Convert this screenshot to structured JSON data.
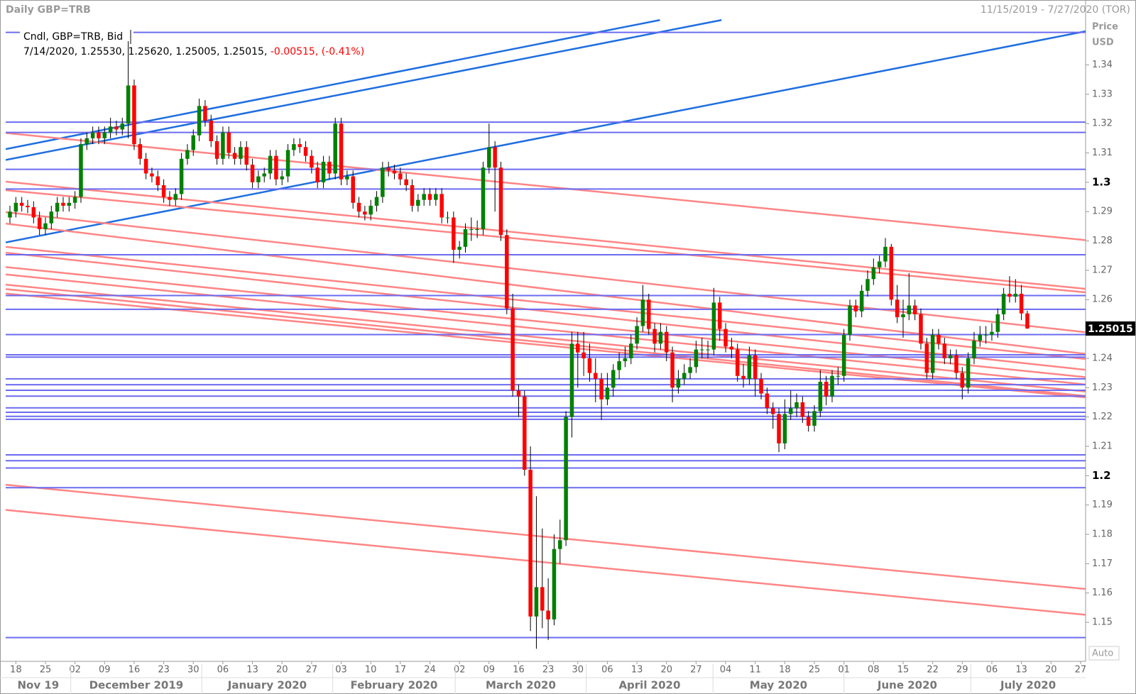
{
  "chart_data": {
    "type": "candlestick",
    "title": "Daily GBP=TRB",
    "date_range": "11/15/2019 - 7/27/2020 (TOR)",
    "series_label": "Cndl, GBP=TRB, Bid",
    "ohlc_label": "7/14/2020, 1.25530, 1.25620, 1.25005, 1.25015,",
    "change_label": "-0.00515,",
    "change_pct_label": "(-0.41%)",
    "y_axis_label": "Price",
    "y_axis_unit": "USD",
    "scale_mode": "Auto",
    "up_color": "#008000",
    "down_color": "#ff0000",
    "last_price": {
      "value": 1.25015,
      "label": "1.25015"
    },
    "ylim": [
      1.1367,
      1.3556
    ],
    "xlim": [
      -0.72,
      181.85
    ],
    "yticks": [
      1.15,
      1.16,
      1.17,
      1.18,
      1.19,
      1.2,
      1.21,
      1.22,
      1.23,
      1.24,
      1.25,
      1.26,
      1.27,
      1.28,
      1.29,
      1.3,
      1.31,
      1.32,
      1.33,
      1.34
    ],
    "x_tick_labels": [
      "18",
      "25",
      "02",
      "09",
      "16",
      "23",
      "30",
      "06",
      "13",
      "20",
      "27",
      "03",
      "10",
      "17",
      "24",
      "02",
      "09",
      "16",
      "23",
      "30",
      "06",
      "13",
      "20",
      "27",
      "04",
      "11",
      "18",
      "25",
      "01",
      "08",
      "15",
      "22",
      "29",
      "06",
      "13",
      "20",
      "27"
    ],
    "month_labels": [
      "Nov 19",
      "December 2019",
      "January 2020",
      "February 2020",
      "March 2020",
      "April 2020",
      "May 2020",
      "June 2020",
      "July 2020"
    ],
    "h_lines": {
      "color": "#6b6bf0",
      "values": [
        1.3511,
        1.3205,
        1.317,
        1.3044,
        1.2977,
        1.2753,
        1.2614,
        1.2567,
        1.2481,
        1.2412,
        1.2404,
        1.233,
        1.231,
        1.2291,
        1.2271,
        1.2231,
        1.2216,
        1.2202,
        1.2192,
        1.2071,
        1.2051,
        1.2026,
        1.1959,
        1.1448
      ]
    },
    "trend_lines": [
      {
        "color": "#1e6ee0",
        "lines": [
          [
            -0.72,
            1.3113,
            109.88,
            1.3553
          ],
          [
            -0.72,
            1.3076,
            120.3,
            1.3553
          ],
          [
            -0.72,
            1.2795,
            182.2,
            1.3516
          ]
        ]
      },
      {
        "color": "#ff8585",
        "lines": [
          [
            -0.72,
            1.3168,
            182.2,
            1.2802
          ],
          [
            -0.72,
            1.3002,
            182.2,
            1.2636
          ],
          [
            -0.72,
            1.2973,
            182.2,
            1.2624
          ],
          [
            -0.72,
            1.2898,
            182.2,
            1.2488
          ],
          [
            -0.72,
            1.2859,
            182.2,
            1.2414
          ],
          [
            -0.72,
            1.278,
            182.2,
            1.2397
          ],
          [
            -0.72,
            1.276,
            182.2,
            1.236
          ],
          [
            -0.72,
            1.2711,
            182.2,
            1.2335
          ],
          [
            -0.72,
            1.2686,
            182.2,
            1.231
          ],
          [
            -0.72,
            1.2651,
            182.2,
            1.2286
          ],
          [
            -0.72,
            1.2636,
            182.2,
            1.2271
          ],
          [
            -0.72,
            1.2621,
            182.2,
            1.2266
          ],
          [
            -0.72,
            1.1969,
            182.2,
            1.1613
          ],
          [
            -0.72,
            1.1883,
            182.2,
            1.1525
          ]
        ]
      }
    ],
    "candles": [
      [
        1.288,
        1.292,
        1.286,
        1.29
      ],
      [
        1.29,
        1.295,
        1.288,
        1.293
      ],
      [
        1.293,
        1.295,
        1.29,
        1.292
      ],
      [
        1.292,
        1.294,
        1.2895,
        1.2915
      ],
      [
        1.2915,
        1.2935,
        1.286,
        1.288
      ],
      [
        1.288,
        1.29,
        1.282,
        1.284
      ],
      [
        1.284,
        1.288,
        1.282,
        1.286
      ],
      [
        1.286,
        1.292,
        1.284,
        1.29
      ],
      [
        1.29,
        1.295,
        1.288,
        1.293
      ],
      [
        1.293,
        1.295,
        1.29,
        1.292
      ],
      [
        1.292,
        1.295,
        1.29,
        1.293
      ],
      [
        1.293,
        1.297,
        1.291,
        1.295
      ],
      [
        1.295,
        1.315,
        1.293,
        1.313
      ],
      [
        1.313,
        1.317,
        1.311,
        1.315
      ],
      [
        1.315,
        1.319,
        1.313,
        1.317
      ],
      [
        1.317,
        1.319,
        1.313,
        1.315
      ],
      [
        1.315,
        1.319,
        1.313,
        1.317
      ],
      [
        1.317,
        1.322,
        1.315,
        1.319
      ],
      [
        1.319,
        1.321,
        1.316,
        1.318
      ],
      [
        1.318,
        1.322,
        1.316,
        1.32
      ],
      [
        1.32,
        1.3514,
        1.315,
        1.333
      ],
      [
        1.333,
        1.335,
        1.311,
        1.313
      ],
      [
        1.313,
        1.315,
        1.306,
        1.308
      ],
      [
        1.308,
        1.31,
        1.301,
        1.303
      ],
      [
        1.303,
        1.305,
        1.3,
        1.302
      ],
      [
        1.302,
        1.304,
        1.297,
        1.299
      ],
      [
        1.299,
        1.301,
        1.293,
        1.295
      ],
      [
        1.295,
        1.297,
        1.292,
        1.294
      ],
      [
        1.294,
        1.298,
        1.292,
        1.296
      ],
      [
        1.296,
        1.31,
        1.294,
        1.308
      ],
      [
        1.308,
        1.313,
        1.306,
        1.311
      ],
      [
        1.311,
        1.318,
        1.309,
        1.316
      ],
      [
        1.316,
        1.3285,
        1.314,
        1.326
      ],
      [
        1.326,
        1.328,
        1.319,
        1.321
      ],
      [
        1.321,
        1.323,
        1.312,
        1.314
      ],
      [
        1.314,
        1.316,
        1.306,
        1.308
      ],
      [
        1.308,
        1.319,
        1.306,
        1.317
      ],
      [
        1.317,
        1.319,
        1.308,
        1.31
      ],
      [
        1.31,
        1.312,
        1.306,
        1.308
      ],
      [
        1.308,
        1.314,
        1.306,
        1.312
      ],
      [
        1.312,
        1.314,
        1.304,
        1.306
      ],
      [
        1.306,
        1.308,
        1.298,
        1.3
      ],
      [
        1.3,
        1.304,
        1.298,
        1.302
      ],
      [
        1.302,
        1.305,
        1.3,
        1.303
      ],
      [
        1.303,
        1.311,
        1.301,
        1.309
      ],
      [
        1.309,
        1.311,
        1.299,
        1.301
      ],
      [
        1.301,
        1.304,
        1.299,
        1.302
      ],
      [
        1.302,
        1.313,
        1.3,
        1.311
      ],
      [
        1.311,
        1.315,
        1.309,
        1.313
      ],
      [
        1.313,
        1.315,
        1.31,
        1.312
      ],
      [
        1.312,
        1.314,
        1.307,
        1.309
      ],
      [
        1.309,
        1.311,
        1.303,
        1.305
      ],
      [
        1.305,
        1.307,
        1.298,
        1.3
      ],
      [
        1.3,
        1.309,
        1.298,
        1.307
      ],
      [
        1.307,
        1.309,
        1.301,
        1.303
      ],
      [
        1.303,
        1.322,
        1.301,
        1.32
      ],
      [
        1.32,
        1.322,
        1.299,
        1.301
      ],
      [
        1.301,
        1.304,
        1.299,
        1.302
      ],
      [
        1.302,
        1.304,
        1.291,
        1.293
      ],
      [
        1.293,
        1.295,
        1.288,
        1.29
      ],
      [
        1.29,
        1.292,
        1.287,
        1.289
      ],
      [
        1.289,
        1.294,
        1.287,
        1.292
      ],
      [
        1.292,
        1.297,
        1.29,
        1.295
      ],
      [
        1.295,
        1.307,
        1.293,
        1.305
      ],
      [
        1.305,
        1.307,
        1.302,
        1.304
      ],
      [
        1.304,
        1.306,
        1.301,
        1.303
      ],
      [
        1.303,
        1.305,
        1.299,
        1.301
      ],
      [
        1.301,
        1.303,
        1.297,
        1.299
      ],
      [
        1.299,
        1.301,
        1.29,
        1.292
      ],
      [
        1.292,
        1.296,
        1.29,
        1.294
      ],
      [
        1.294,
        1.298,
        1.292,
        1.296
      ],
      [
        1.296,
        1.298,
        1.292,
        1.294
      ],
      [
        1.294,
        1.298,
        1.292,
        1.296
      ],
      [
        1.296,
        1.298,
        1.286,
        1.288
      ],
      [
        1.288,
        1.29,
        1.286,
        1.288
      ],
      [
        1.288,
        1.29,
        1.2725,
        1.277
      ],
      [
        1.277,
        1.28,
        1.274,
        1.278
      ],
      [
        1.278,
        1.286,
        1.276,
        1.284
      ],
      [
        1.284,
        1.288,
        1.28,
        1.284
      ],
      [
        1.284,
        1.287,
        1.281,
        1.284
      ],
      [
        1.284,
        1.307,
        1.282,
        1.305
      ],
      [
        1.305,
        1.32,
        1.303,
        1.312
      ],
      [
        1.312,
        1.314,
        1.29,
        1.305
      ],
      [
        1.305,
        1.307,
        1.28,
        1.282
      ],
      [
        1.282,
        1.284,
        1.255,
        1.257
      ],
      [
        1.257,
        1.262,
        1.227,
        1.229
      ],
      [
        1.229,
        1.231,
        1.22,
        1.227
      ],
      [
        1.227,
        1.229,
        1.2,
        1.202
      ],
      [
        1.202,
        1.21,
        1.147,
        1.152
      ],
      [
        1.152,
        1.193,
        1.141,
        1.162
      ],
      [
        1.162,
        1.182,
        1.148,
        1.154
      ],
      [
        1.154,
        1.165,
        1.144,
        1.151
      ],
      [
        1.151,
        1.18,
        1.149,
        1.175
      ],
      [
        1.175,
        1.185,
        1.17,
        1.178
      ],
      [
        1.178,
        1.222,
        1.176,
        1.22
      ],
      [
        1.22,
        1.249,
        1.213,
        1.245
      ],
      [
        1.245,
        1.249,
        1.23,
        1.242
      ],
      [
        1.242,
        1.249,
        1.234,
        1.24
      ],
      [
        1.24,
        1.245,
        1.232,
        1.235
      ],
      [
        1.235,
        1.24,
        1.225,
        1.233
      ],
      [
        1.233,
        1.235,
        1.219,
        1.226
      ],
      [
        1.226,
        1.235,
        1.224,
        1.23
      ],
      [
        1.23,
        1.238,
        1.227,
        1.236
      ],
      [
        1.236,
        1.242,
        1.233,
        1.239
      ],
      [
        1.239,
        1.244,
        1.237,
        1.24
      ],
      [
        1.24,
        1.248,
        1.238,
        1.245
      ],
      [
        1.245,
        1.254,
        1.243,
        1.251
      ],
      [
        1.251,
        1.265,
        1.249,
        1.26
      ],
      [
        1.26,
        1.262,
        1.248,
        1.25
      ],
      [
        1.25,
        1.252,
        1.242,
        1.245
      ],
      [
        1.245,
        1.252,
        1.243,
        1.249
      ],
      [
        1.249,
        1.251,
        1.239,
        1.242
      ],
      [
        1.242,
        1.244,
        1.225,
        1.23
      ],
      [
        1.23,
        1.236,
        1.228,
        1.233
      ],
      [
        1.233,
        1.238,
        1.231,
        1.235
      ],
      [
        1.235,
        1.24,
        1.233,
        1.237
      ],
      [
        1.237,
        1.246,
        1.235,
        1.243
      ],
      [
        1.243,
        1.247,
        1.24,
        1.243
      ],
      [
        1.243,
        1.246,
        1.24,
        1.243
      ],
      [
        1.243,
        1.264,
        1.241,
        1.259
      ],
      [
        1.259,
        1.261,
        1.246,
        1.25
      ],
      [
        1.25,
        1.252,
        1.242,
        1.244
      ],
      [
        1.244,
        1.247,
        1.24,
        1.243
      ],
      [
        1.243,
        1.245,
        1.232,
        1.234
      ],
      [
        1.234,
        1.238,
        1.23,
        1.233
      ],
      [
        1.233,
        1.244,
        1.231,
        1.241
      ],
      [
        1.241,
        1.243,
        1.227,
        1.233
      ],
      [
        1.233,
        1.235,
        1.226,
        1.228
      ],
      [
        1.228,
        1.23,
        1.221,
        1.223
      ],
      [
        1.223,
        1.225,
        1.216,
        1.221
      ],
      [
        1.221,
        1.223,
        1.208,
        1.211
      ],
      [
        1.211,
        1.226,
        1.209,
        1.221
      ],
      [
        1.221,
        1.229,
        1.219,
        1.223
      ],
      [
        1.223,
        1.228,
        1.22,
        1.225
      ],
      [
        1.225,
        1.227,
        1.218,
        1.22
      ],
      [
        1.22,
        1.222,
        1.215,
        1.217
      ],
      [
        1.217,
        1.224,
        1.215,
        1.222
      ],
      [
        1.222,
        1.236,
        1.22,
        1.232
      ],
      [
        1.232,
        1.234,
        1.224,
        1.227
      ],
      [
        1.227,
        1.236,
        1.225,
        1.234
      ],
      [
        1.234,
        1.237,
        1.231,
        1.234
      ],
      [
        1.234,
        1.25,
        1.232,
        1.248
      ],
      [
        1.248,
        1.26,
        1.246,
        1.258
      ],
      [
        1.258,
        1.26,
        1.254,
        1.256
      ],
      [
        1.256,
        1.265,
        1.254,
        1.263
      ],
      [
        1.263,
        1.27,
        1.261,
        1.267
      ],
      [
        1.267,
        1.274,
        1.265,
        1.271
      ],
      [
        1.271,
        1.275,
        1.269,
        1.273
      ],
      [
        1.273,
        1.281,
        1.271,
        1.278
      ],
      [
        1.278,
        1.279,
        1.258,
        1.26
      ],
      [
        1.26,
        1.265,
        1.252,
        1.254
      ],
      [
        1.254,
        1.26,
        1.247,
        1.255
      ],
      [
        1.255,
        1.269,
        1.253,
        1.258
      ],
      [
        1.258,
        1.26,
        1.253,
        1.255
      ],
      [
        1.255,
        1.257,
        1.243,
        1.245
      ],
      [
        1.245,
        1.247,
        1.233,
        1.235
      ],
      [
        1.235,
        1.25,
        1.233,
        1.248
      ],
      [
        1.248,
        1.25,
        1.243,
        1.245
      ],
      [
        1.245,
        1.247,
        1.238,
        1.24
      ],
      [
        1.24,
        1.243,
        1.238,
        1.241
      ],
      [
        1.241,
        1.243,
        1.233,
        1.235
      ],
      [
        1.235,
        1.237,
        1.226,
        1.23
      ],
      [
        1.23,
        1.242,
        1.228,
        1.24
      ],
      [
        1.24,
        1.249,
        1.238,
        1.246
      ],
      [
        1.246,
        1.251,
        1.244,
        1.248
      ],
      [
        1.248,
        1.251,
        1.245,
        1.248
      ],
      [
        1.248,
        1.252,
        1.246,
        1.249
      ],
      [
        1.249,
        1.257,
        1.247,
        1.255
      ],
      [
        1.255,
        1.264,
        1.253,
        1.262
      ],
      [
        1.262,
        1.268,
        1.259,
        1.261
      ],
      [
        1.261,
        1.267,
        1.259,
        1.262
      ],
      [
        1.262,
        1.265,
        1.253,
        1.2553
      ],
      [
        1.2553,
        1.2562,
        1.25005,
        1.25015
      ]
    ]
  }
}
